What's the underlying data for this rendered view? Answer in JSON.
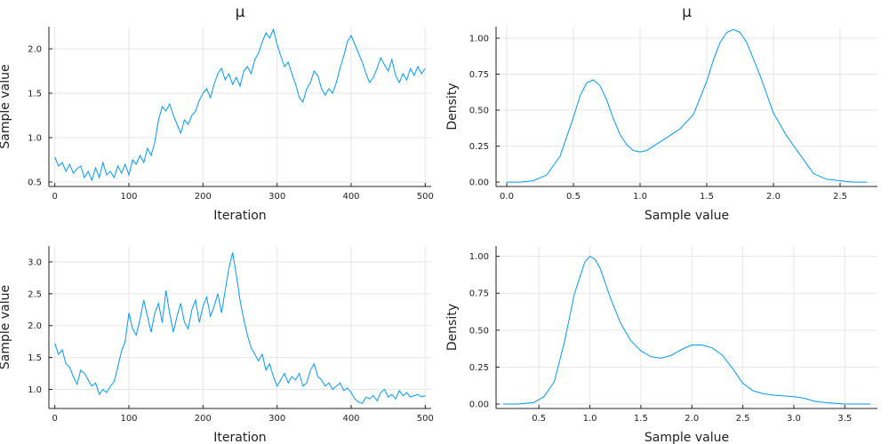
{
  "colors": {
    "series": "#009AF9"
  },
  "chart_data": [
    {
      "type": "line",
      "title": "μ",
      "xlabel": "Iteration",
      "ylabel": "Sample value",
      "xlim": [
        -8,
        508
      ],
      "ylim": [
        0.45,
        2.25
      ],
      "xticks": [
        0,
        100,
        200,
        300,
        400,
        500
      ],
      "yticks": [
        0.5,
        1.0,
        1.5,
        2.0
      ],
      "grid": true,
      "legend": "none",
      "series": [
        {
          "x": [
            0,
            5,
            10,
            15,
            20,
            25,
            30,
            35,
            40,
            45,
            50,
            55,
            60,
            65,
            70,
            75,
            80,
            85,
            90,
            95,
            100,
            105,
            110,
            115,
            120,
            125,
            130,
            135,
            140,
            145,
            150,
            155,
            160,
            165,
            170,
            175,
            180,
            185,
            190,
            195,
            200,
            205,
            210,
            215,
            220,
            225,
            230,
            235,
            240,
            245,
            250,
            255,
            260,
            265,
            270,
            275,
            280,
            285,
            290,
            295,
            300,
            305,
            310,
            315,
            320,
            325,
            330,
            335,
            340,
            345,
            350,
            355,
            360,
            365,
            370,
            375,
            380,
            385,
            390,
            395,
            400,
            405,
            410,
            415,
            420,
            425,
            430,
            435,
            440,
            445,
            450,
            455,
            460,
            465,
            470,
            475,
            480,
            485,
            490,
            495,
            500
          ],
          "values": [
            0.78,
            0.68,
            0.72,
            0.62,
            0.7,
            0.6,
            0.65,
            0.68,
            0.55,
            0.62,
            0.52,
            0.66,
            0.55,
            0.72,
            0.58,
            0.62,
            0.55,
            0.68,
            0.6,
            0.7,
            0.58,
            0.75,
            0.7,
            0.8,
            0.72,
            0.88,
            0.8,
            0.95,
            1.2,
            1.35,
            1.3,
            1.38,
            1.25,
            1.15,
            1.05,
            1.2,
            1.15,
            1.25,
            1.3,
            1.42,
            1.5,
            1.55,
            1.45,
            1.6,
            1.72,
            1.78,
            1.65,
            1.72,
            1.6,
            1.68,
            1.58,
            1.75,
            1.8,
            1.72,
            1.88,
            1.95,
            2.08,
            2.18,
            2.12,
            2.22,
            2.05,
            1.92,
            1.8,
            1.85,
            1.72,
            1.6,
            1.45,
            1.4,
            1.55,
            1.62,
            1.75,
            1.7,
            1.55,
            1.48,
            1.55,
            1.5,
            1.62,
            1.78,
            1.92,
            2.08,
            2.15,
            2.05,
            1.95,
            1.85,
            1.72,
            1.62,
            1.68,
            1.78,
            1.9,
            1.82,
            1.75,
            1.88,
            1.7,
            1.62,
            1.72,
            1.65,
            1.78,
            1.7,
            1.8,
            1.72,
            1.78
          ]
        }
      ]
    },
    {
      "type": "line",
      "title": "μ",
      "xlabel": "Sample value",
      "ylabel": "Density",
      "xlim": [
        -0.08,
        2.78
      ],
      "ylim": [
        -0.03,
        1.08
      ],
      "xticks": [
        0.0,
        0.5,
        1.0,
        1.5,
        2.0,
        2.5
      ],
      "yticks": [
        0.0,
        0.25,
        0.5,
        0.75,
        1.0
      ],
      "grid": true,
      "legend": "none",
      "series": [
        {
          "x": [
            0.0,
            0.1,
            0.2,
            0.3,
            0.4,
            0.5,
            0.55,
            0.6,
            0.65,
            0.7,
            0.75,
            0.8,
            0.85,
            0.9,
            0.95,
            1.0,
            1.05,
            1.1,
            1.2,
            1.3,
            1.4,
            1.5,
            1.55,
            1.6,
            1.65,
            1.7,
            1.75,
            1.8,
            1.9,
            2.0,
            2.1,
            2.2,
            2.3,
            2.4,
            2.5,
            2.6,
            2.7
          ],
          "values": [
            0.0,
            0.0,
            0.01,
            0.05,
            0.18,
            0.45,
            0.6,
            0.69,
            0.71,
            0.67,
            0.57,
            0.44,
            0.33,
            0.26,
            0.22,
            0.21,
            0.22,
            0.25,
            0.31,
            0.37,
            0.47,
            0.7,
            0.85,
            0.97,
            1.04,
            1.06,
            1.04,
            0.97,
            0.74,
            0.48,
            0.32,
            0.19,
            0.06,
            0.02,
            0.01,
            0.0,
            0.0
          ]
        }
      ]
    },
    {
      "type": "line",
      "title": "",
      "xlabel": "Iteration",
      "ylabel": "Sample value",
      "xlim": [
        -8,
        508
      ],
      "ylim": [
        0.7,
        3.25
      ],
      "xticks": [
        0,
        100,
        200,
        300,
        400,
        500
      ],
      "yticks": [
        1.0,
        1.5,
        2.0,
        2.5,
        3.0
      ],
      "grid": true,
      "legend": "none",
      "series": [
        {
          "x": [
            0,
            5,
            10,
            15,
            20,
            25,
            30,
            35,
            40,
            45,
            50,
            55,
            60,
            65,
            70,
            75,
            80,
            85,
            90,
            95,
            100,
            105,
            110,
            115,
            120,
            125,
            130,
            135,
            140,
            145,
            150,
            155,
            160,
            165,
            170,
            175,
            180,
            185,
            190,
            195,
            200,
            205,
            210,
            215,
            220,
            225,
            230,
            235,
            240,
            245,
            250,
            255,
            260,
            265,
            270,
            275,
            280,
            285,
            290,
            295,
            300,
            305,
            310,
            315,
            320,
            325,
            330,
            335,
            340,
            345,
            350,
            355,
            360,
            365,
            370,
            375,
            380,
            385,
            390,
            395,
            400,
            405,
            410,
            415,
            420,
            425,
            430,
            435,
            440,
            445,
            450,
            455,
            460,
            465,
            470,
            475,
            480,
            485,
            490,
            495,
            500
          ],
          "values": [
            1.72,
            1.55,
            1.62,
            1.4,
            1.35,
            1.2,
            1.08,
            1.3,
            1.25,
            1.15,
            1.05,
            1.1,
            0.92,
            1.0,
            0.95,
            1.05,
            1.12,
            1.35,
            1.6,
            1.75,
            2.2,
            1.95,
            1.85,
            2.1,
            2.4,
            2.15,
            1.9,
            2.2,
            2.35,
            2.05,
            2.55,
            2.2,
            1.9,
            2.15,
            2.35,
            2.05,
            1.95,
            2.25,
            2.4,
            2.05,
            2.3,
            2.45,
            2.15,
            2.3,
            2.5,
            2.2,
            2.55,
            2.9,
            3.15,
            2.8,
            2.4,
            2.1,
            1.85,
            1.65,
            1.55,
            1.45,
            1.55,
            1.3,
            1.4,
            1.2,
            1.05,
            1.15,
            1.25,
            1.1,
            1.2,
            1.15,
            1.25,
            1.05,
            1.1,
            1.3,
            1.4,
            1.2,
            1.15,
            1.05,
            1.1,
            1.0,
            1.05,
            1.1,
            0.98,
            1.02,
            0.95,
            0.85,
            0.8,
            0.78,
            0.88,
            0.85,
            0.9,
            0.82,
            0.95,
            1.0,
            0.88,
            0.92,
            0.85,
            0.98,
            0.9,
            0.95,
            0.88,
            0.9,
            0.92,
            0.88,
            0.9
          ]
        }
      ]
    },
    {
      "type": "line",
      "title": "",
      "xlabel": "Sample value",
      "ylabel": "Density",
      "xlim": [
        0.08,
        3.82
      ],
      "ylim": [
        -0.03,
        1.07
      ],
      "xticks": [
        0.5,
        1.0,
        1.5,
        2.0,
        2.5,
        3.0,
        3.5
      ],
      "yticks": [
        0.0,
        0.25,
        0.5,
        0.75,
        1.0
      ],
      "grid": true,
      "legend": "none",
      "series": [
        {
          "x": [
            0.15,
            0.3,
            0.45,
            0.55,
            0.65,
            0.75,
            0.85,
            0.95,
            1.0,
            1.05,
            1.1,
            1.2,
            1.3,
            1.4,
            1.5,
            1.6,
            1.7,
            1.8,
            1.9,
            2.0,
            2.1,
            2.2,
            2.3,
            2.4,
            2.5,
            2.6,
            2.7,
            2.8,
            3.0,
            3.1,
            3.2,
            3.3,
            3.5,
            3.75
          ],
          "values": [
            0.0,
            0.0,
            0.01,
            0.05,
            0.15,
            0.42,
            0.75,
            0.96,
            1.0,
            0.98,
            0.92,
            0.72,
            0.55,
            0.43,
            0.36,
            0.32,
            0.31,
            0.33,
            0.37,
            0.4,
            0.4,
            0.38,
            0.33,
            0.24,
            0.14,
            0.09,
            0.07,
            0.06,
            0.05,
            0.04,
            0.02,
            0.01,
            0.0,
            0.0
          ]
        }
      ]
    }
  ]
}
